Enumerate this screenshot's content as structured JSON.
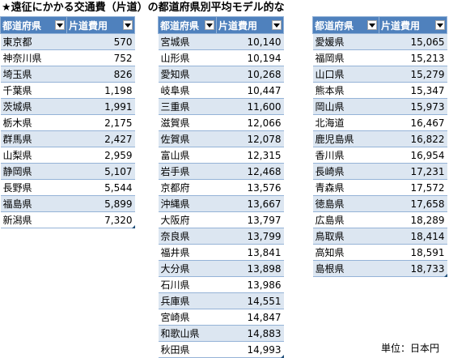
{
  "title": "★遠征にかかる交通費（片道）の都道府県別平均モデル的な",
  "unit_label": "単位：日本円",
  "columns": {
    "prefecture": "都道府県",
    "fare": "片道費用"
  },
  "tables": [
    {
      "rows": [
        [
          "東京都",
          "570"
        ],
        [
          "神奈川県",
          "752"
        ],
        [
          "埼玉県",
          "826"
        ],
        [
          "千葉県",
          "1,198"
        ],
        [
          "茨城県",
          "1,991"
        ],
        [
          "栃木県",
          "2,175"
        ],
        [
          "群馬県",
          "2,427"
        ],
        [
          "山梨県",
          "2,959"
        ],
        [
          "静岡県",
          "5,107"
        ],
        [
          "長野県",
          "5,544"
        ],
        [
          "福島県",
          "5,899"
        ],
        [
          "新潟県",
          "7,320"
        ]
      ]
    },
    {
      "rows": [
        [
          "宮城県",
          "10,140"
        ],
        [
          "山形県",
          "10,194"
        ],
        [
          "愛知県",
          "10,268"
        ],
        [
          "岐阜県",
          "10,447"
        ],
        [
          "三重県",
          "11,600"
        ],
        [
          "滋賀県",
          "12,066"
        ],
        [
          "佐賀県",
          "12,078"
        ],
        [
          "富山県",
          "12,315"
        ],
        [
          "岩手県",
          "12,468"
        ],
        [
          "京都府",
          "13,576"
        ],
        [
          "沖縄県",
          "13,667"
        ],
        [
          "大阪府",
          "13,797"
        ],
        [
          "奈良県",
          "13,799"
        ],
        [
          "福井県",
          "13,841"
        ],
        [
          "大分県",
          "13,898"
        ],
        [
          "石川県",
          "13,986"
        ],
        [
          "兵庫県",
          "14,551"
        ],
        [
          "宮崎県",
          "14,847"
        ],
        [
          "和歌山県",
          "14,883"
        ],
        [
          "秋田県",
          "14,993"
        ]
      ]
    },
    {
      "rows": [
        [
          "愛媛県",
          "15,065"
        ],
        [
          "福岡県",
          "15,213"
        ],
        [
          "山口県",
          "15,279"
        ],
        [
          "熊本県",
          "15,347"
        ],
        [
          "岡山県",
          "15,973"
        ],
        [
          "北海道",
          "16,467"
        ],
        [
          "鹿児島県",
          "16,822"
        ],
        [
          "香川県",
          "16,954"
        ],
        [
          "長崎県",
          "17,231"
        ],
        [
          "青森県",
          "17,572"
        ],
        [
          "徳島県",
          "17,658"
        ],
        [
          "広島県",
          "18,289"
        ],
        [
          "鳥取県",
          "18,414"
        ],
        [
          "高知県",
          "18,591"
        ],
        [
          "島根県",
          "18,733"
        ]
      ]
    }
  ]
}
